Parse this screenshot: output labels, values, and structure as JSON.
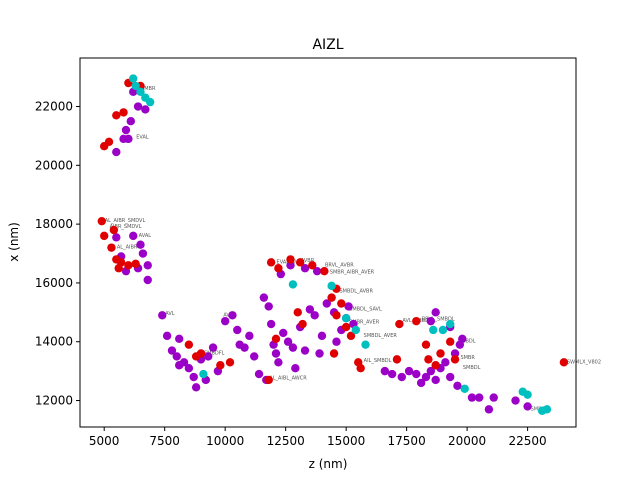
{
  "chart_data": {
    "type": "scatter",
    "title": "AIZL",
    "xlabel": "z (nm)",
    "ylabel": "x (nm)",
    "xlim": [
      4000,
      24500
    ],
    "ylim": [
      11100,
      23650
    ],
    "xticks": [
      5000,
      7500,
      10000,
      12500,
      15000,
      17500,
      20000,
      22500
    ],
    "yticks": [
      12000,
      14000,
      16000,
      18000,
      20000,
      22000
    ],
    "grid": false,
    "legend": "none",
    "series": [
      {
        "color": "#9b00c6",
        "points": [
          [
            6200,
            22500
          ],
          [
            6400,
            22000
          ],
          [
            6700,
            21900
          ],
          [
            6100,
            21500
          ],
          [
            5900,
            21200
          ],
          [
            5800,
            20900
          ],
          [
            6000,
            20900
          ],
          [
            5500,
            20450
          ],
          [
            5500,
            17550
          ],
          [
            6200,
            17600
          ],
          [
            6500,
            17300
          ],
          [
            6600,
            17000
          ],
          [
            5700,
            16900
          ],
          [
            6800,
            16600
          ],
          [
            6400,
            16500
          ],
          [
            6800,
            16100
          ],
          [
            5900,
            16400
          ],
          [
            7400,
            14900
          ],
          [
            7600,
            14200
          ],
          [
            8100,
            14100
          ],
          [
            7800,
            13700
          ],
          [
            8000,
            13500
          ],
          [
            8300,
            13300
          ],
          [
            8100,
            13200
          ],
          [
            8500,
            13100
          ],
          [
            8700,
            12800
          ],
          [
            8800,
            12450
          ],
          [
            9000,
            13400
          ],
          [
            9300,
            13500
          ],
          [
            9500,
            13800
          ],
          [
            9700,
            13000
          ],
          [
            9200,
            12700
          ],
          [
            10000,
            14700
          ],
          [
            10300,
            14900
          ],
          [
            10500,
            14400
          ],
          [
            10600,
            13900
          ],
          [
            10800,
            13800
          ],
          [
            11000,
            14200
          ],
          [
            11200,
            13500
          ],
          [
            11400,
            12900
          ],
          [
            11600,
            15500
          ],
          [
            11800,
            15200
          ],
          [
            11900,
            14600
          ],
          [
            12000,
            13900
          ],
          [
            12100,
            13600
          ],
          [
            12200,
            13300
          ],
          [
            12400,
            14300
          ],
          [
            12600,
            14000
          ],
          [
            12800,
            13800
          ],
          [
            12900,
            13100
          ],
          [
            13100,
            14500
          ],
          [
            13300,
            13700
          ],
          [
            13500,
            15100
          ],
          [
            13700,
            14900
          ],
          [
            13900,
            13600
          ],
          [
            14000,
            14200
          ],
          [
            14200,
            15300
          ],
          [
            14500,
            15000
          ],
          [
            14600,
            14000
          ],
          [
            14800,
            14400
          ],
          [
            15000,
            14800
          ],
          [
            15100,
            15200
          ],
          [
            15300,
            14600
          ],
          [
            16600,
            13000
          ],
          [
            16900,
            12900
          ],
          [
            17300,
            12800
          ],
          [
            17600,
            13000
          ],
          [
            17900,
            12900
          ],
          [
            18100,
            12600
          ],
          [
            18300,
            12800
          ],
          [
            18500,
            13000
          ],
          [
            18700,
            12700
          ],
          [
            18900,
            13100
          ],
          [
            19100,
            13300
          ],
          [
            19300,
            12800
          ],
          [
            19500,
            13600
          ],
          [
            19700,
            13900
          ],
          [
            19800,
            14100
          ],
          [
            18500,
            14700
          ],
          [
            18700,
            15000
          ],
          [
            19300,
            14500
          ],
          [
            19600,
            12500
          ],
          [
            20200,
            12100
          ],
          [
            20500,
            12100
          ],
          [
            20900,
            11700
          ],
          [
            21100,
            12100
          ],
          [
            22000,
            12000
          ],
          [
            22500,
            11800
          ],
          [
            11700,
            12700
          ],
          [
            12300,
            16300
          ],
          [
            12700,
            16600
          ],
          [
            13300,
            16500
          ],
          [
            13800,
            16400
          ]
        ]
      },
      {
        "color": "#e00000",
        "points": [
          [
            6000,
            22800
          ],
          [
            6500,
            22700
          ],
          [
            5500,
            21700
          ],
          [
            5800,
            21800
          ],
          [
            5200,
            20800
          ],
          [
            5000,
            20650
          ],
          [
            4900,
            18100
          ],
          [
            5000,
            17600
          ],
          [
            5400,
            17800
          ],
          [
            5300,
            17200
          ],
          [
            5500,
            16800
          ],
          [
            5700,
            16700
          ],
          [
            5600,
            16500
          ],
          [
            6000,
            16600
          ],
          [
            6300,
            16650
          ],
          [
            8500,
            13900
          ],
          [
            8800,
            13500
          ],
          [
            9000,
            13600
          ],
          [
            9800,
            13200
          ],
          [
            10200,
            13300
          ],
          [
            11800,
            12700
          ],
          [
            11900,
            16700
          ],
          [
            12200,
            16500
          ],
          [
            12700,
            16800
          ],
          [
            13100,
            16700
          ],
          [
            13600,
            16600
          ],
          [
            14100,
            16400
          ],
          [
            14400,
            15500
          ],
          [
            14600,
            15800
          ],
          [
            14800,
            15300
          ],
          [
            14600,
            14900
          ],
          [
            15000,
            14500
          ],
          [
            15200,
            14200
          ],
          [
            14500,
            13600
          ],
          [
            15500,
            13300
          ],
          [
            15600,
            13100
          ],
          [
            17100,
            13400
          ],
          [
            17200,
            14600
          ],
          [
            17900,
            14700
          ],
          [
            18300,
            13900
          ],
          [
            18400,
            13400
          ],
          [
            18700,
            13200
          ],
          [
            18900,
            13600
          ],
          [
            19300,
            14000
          ],
          [
            19500,
            13400
          ],
          [
            13000,
            15000
          ],
          [
            13200,
            14600
          ],
          [
            12100,
            14100
          ],
          [
            24000,
            13300
          ]
        ]
      },
      {
        "color": "#00bfbf",
        "points": [
          [
            6200,
            22950
          ],
          [
            6300,
            22700
          ],
          [
            6500,
            22500
          ],
          [
            6700,
            22300
          ],
          [
            6900,
            22150
          ],
          [
            12800,
            15950
          ],
          [
            14400,
            15900
          ],
          [
            15000,
            14800
          ],
          [
            15400,
            14400
          ],
          [
            15800,
            13900
          ],
          [
            18600,
            14400
          ],
          [
            19000,
            14400
          ],
          [
            19300,
            14600
          ],
          [
            19900,
            12400
          ],
          [
            22300,
            12300
          ],
          [
            22500,
            12200
          ],
          [
            23100,
            11650
          ],
          [
            23300,
            11700
          ],
          [
            9100,
            12900
          ]
        ]
      }
    ],
    "point_labels": [
      {
        "x": 6400,
        "y": 22600,
        "text": "SMBR"
      },
      {
        "x": 6200,
        "y": 20950,
        "text": "EVAL"
      },
      {
        "x": 4900,
        "y": 18100,
        "text": "AL_AIBR_SMDVL"
      },
      {
        "x": 5100,
        "y": 17900,
        "text": "AIBR_SMDVL"
      },
      {
        "x": 5400,
        "y": 17200,
        "text": "AL_AIBR"
      },
      {
        "x": 6300,
        "y": 17600,
        "text": "AVAL"
      },
      {
        "x": 7400,
        "y": 14950,
        "text": "AVL"
      },
      {
        "x": 9800,
        "y": 14900,
        "text": "AVL"
      },
      {
        "x": 9000,
        "y": 13600,
        "text": "SMBDFL"
      },
      {
        "x": 11700,
        "y": 12750,
        "text": "AL_AIBL_AWCR"
      },
      {
        "x": 12000,
        "y": 16700,
        "text": "EVAL_AVER"
      },
      {
        "x": 13000,
        "y": 16750,
        "text": "AVBR"
      },
      {
        "x": 14000,
        "y": 16600,
        "text": "BRVL_AVBR"
      },
      {
        "x": 14200,
        "y": 16350,
        "text": "SMBR_AIBR_AVER"
      },
      {
        "x": 14600,
        "y": 15700,
        "text": "SMBDL_AVBR"
      },
      {
        "x": 15000,
        "y": 15100,
        "text": "SMBDL_SAVL"
      },
      {
        "x": 15000,
        "y": 14650,
        "text": "SMBR_AVER"
      },
      {
        "x": 15600,
        "y": 14200,
        "text": "SMBDL_AVER"
      },
      {
        "x": 15600,
        "y": 13350,
        "text": "AIL_SMBDL"
      },
      {
        "x": 17200,
        "y": 14700,
        "text": "AVL_SMBDVL"
      },
      {
        "x": 18000,
        "y": 14750,
        "text": "BRVL_SMBDL"
      },
      {
        "x": 19500,
        "y": 14000,
        "text": "SMBDL"
      },
      {
        "x": 19600,
        "y": 13450,
        "text": "SMBR"
      },
      {
        "x": 19700,
        "y": 13100,
        "text": "SMBDL"
      },
      {
        "x": 22500,
        "y": 11700,
        "text": "SMBDL"
      },
      {
        "x": 24000,
        "y": 13300,
        "text": "SWMLX_V802"
      }
    ]
  }
}
